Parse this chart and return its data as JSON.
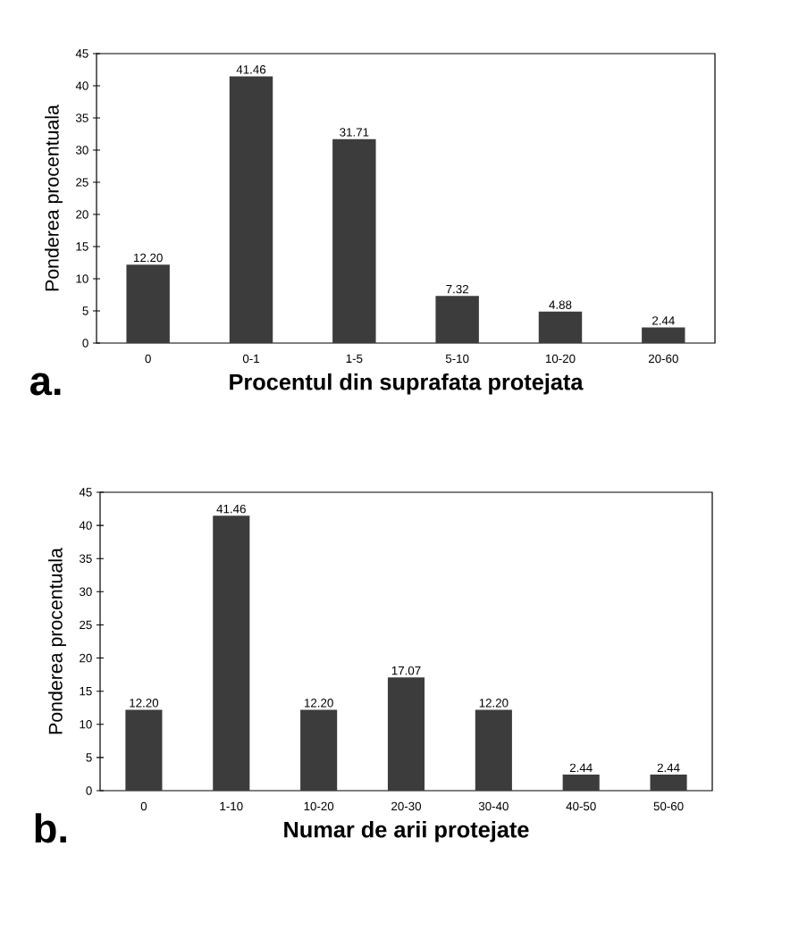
{
  "chart_data": [
    {
      "type": "bar",
      "xlabel": "Procentul din suprafata protejata",
      "ylabel": "Ponderea procentuala",
      "categories": [
        "0",
        "0-1",
        "1-5",
        "5-10",
        "10-20",
        "20-60"
      ],
      "values": [
        12.2,
        41.46,
        31.71,
        7.32,
        4.88,
        2.44
      ],
      "value_labels": [
        "12.20",
        "41.46",
        "31.71",
        "7.32",
        "4.88",
        "2.44"
      ],
      "color": "#3c3c3c",
      "ylim": [
        0,
        45
      ],
      "yticks": [
        0,
        5,
        10,
        15,
        20,
        25,
        30,
        35,
        40,
        45
      ],
      "grid": false,
      "annotations": [
        "a."
      ]
    },
    {
      "type": "bar",
      "xlabel": "Numar de arii protejate",
      "ylabel": "Ponderea procentuala",
      "categories": [
        "0",
        "1-10",
        "10-20",
        "20-30",
        "30-40",
        "40-50",
        "50-60"
      ],
      "values": [
        12.2,
        41.46,
        12.2,
        17.07,
        12.2,
        2.44,
        2.44
      ],
      "value_labels": [
        "12.20",
        "41.46",
        "12.20",
        "17.07",
        "12.20",
        "2.44",
        "2.44"
      ],
      "color": "#3c3c3c",
      "ylim": [
        0,
        45
      ],
      "yticks": [
        0,
        5,
        10,
        15,
        20,
        25,
        30,
        35,
        40,
        45
      ],
      "grid": false,
      "annotations": [
        "b."
      ]
    }
  ]
}
